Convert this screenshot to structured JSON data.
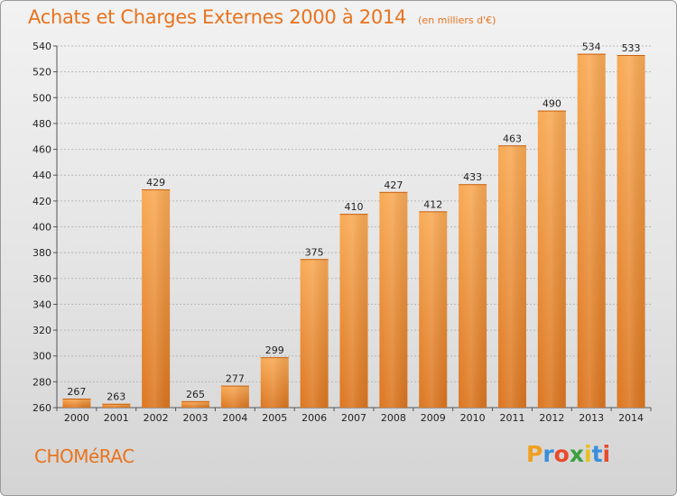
{
  "header": {
    "title": "Achats et Charges Externes 2000 à 2014",
    "unit": "(en milliers d'€)"
  },
  "footer": {
    "commune": "CHOMéRAC",
    "logo_letters": [
      "P",
      "r",
      "o",
      "x",
      "i",
      "t",
      "i"
    ],
    "logo_colors": [
      "#f0a020",
      "#3a8fd8",
      "#e84a2a",
      "#3aa040",
      "#e8c020",
      "#3a8fd8",
      "#e84a2a"
    ]
  },
  "colors": {
    "bar_light": "#f7a44e",
    "bar_dark": "#e07b22",
    "accent": "#e8731e"
  },
  "chart_data": {
    "type": "bar",
    "title": "Achats et Charges Externes 2000 à 2014",
    "categories": [
      "2000",
      "2001",
      "2002",
      "2003",
      "2004",
      "2005",
      "2006",
      "2007",
      "2008",
      "2009",
      "2010",
      "2011",
      "2012",
      "2013",
      "2014"
    ],
    "values": [
      267,
      263,
      429,
      265,
      277,
      299,
      375,
      410,
      427,
      412,
      433,
      463,
      490,
      534,
      533
    ],
    "ylim": [
      260,
      540
    ],
    "yticks": [
      260,
      280,
      300,
      320,
      340,
      360,
      380,
      400,
      420,
      440,
      460,
      480,
      500,
      520,
      540
    ],
    "grid": true,
    "xlabel": "",
    "ylabel": ""
  }
}
